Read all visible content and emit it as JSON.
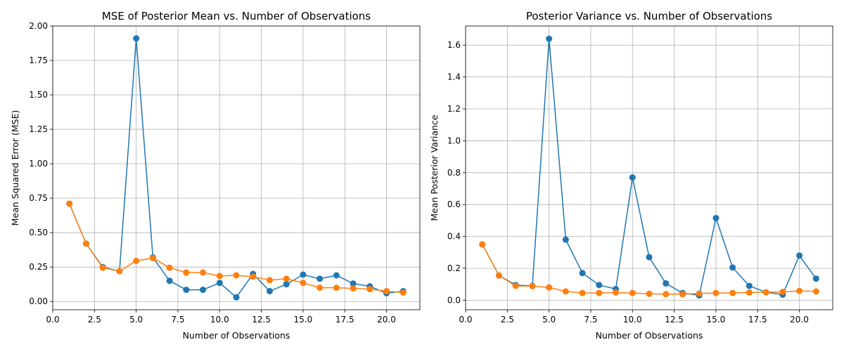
{
  "chart_data": [
    {
      "type": "line",
      "title": "MSE of Posterior Mean vs. Number of Observations",
      "xlabel": "Number of Observations",
      "ylabel": "Mean Squared Error (MSE)",
      "xlim": [
        0.0,
        22.0
      ],
      "ylim": [
        -0.06,
        2.0
      ],
      "xticks": [
        0.0,
        2.5,
        5.0,
        7.5,
        10.0,
        12.5,
        15.0,
        17.5,
        20.0
      ],
      "xtick_labels": [
        "0.0",
        "2.5",
        "5.0",
        "7.5",
        "10.0",
        "12.5",
        "15.0",
        "17.5",
        "20.0"
      ],
      "yticks": [
        0.0,
        0.25,
        0.5,
        0.75,
        1.0,
        1.25,
        1.5,
        1.75,
        2.0
      ],
      "ytick_labels": [
        "0.00",
        "0.25",
        "0.50",
        "0.75",
        "1.00",
        "1.25",
        "1.50",
        "1.75",
        "2.00"
      ],
      "grid": true,
      "x": [
        1,
        2,
        3,
        4,
        5,
        6,
        7,
        8,
        9,
        10,
        11,
        12,
        13,
        14,
        15,
        16,
        17,
        18,
        19,
        20,
        21
      ],
      "series": [
        {
          "color": "#1f77b4",
          "values": [
            0.71,
            0.42,
            0.25,
            0.22,
            1.91,
            0.32,
            0.15,
            0.085,
            0.085,
            0.135,
            0.03,
            0.2,
            0.075,
            0.125,
            0.195,
            0.165,
            0.19,
            0.13,
            0.11,
            0.06,
            0.075
          ]
        },
        {
          "color": "#ff7f0e",
          "values": [
            0.71,
            0.42,
            0.245,
            0.22,
            0.295,
            0.315,
            0.245,
            0.21,
            0.21,
            0.185,
            0.19,
            0.18,
            0.155,
            0.165,
            0.135,
            0.1,
            0.1,
            0.095,
            0.09,
            0.075,
            0.065
          ]
        }
      ]
    },
    {
      "type": "line",
      "title": "Posterior Variance vs. Number of Observations",
      "xlabel": "Number of Observations",
      "ylabel": "Mean Posterior Variance",
      "xlim": [
        0.0,
        22.0
      ],
      "ylim": [
        -0.06,
        1.72
      ],
      "xticks": [
        0.0,
        2.5,
        5.0,
        7.5,
        10.0,
        12.5,
        15.0,
        17.5,
        20.0
      ],
      "xtick_labels": [
        "0.0",
        "2.5",
        "5.0",
        "7.5",
        "10.0",
        "12.5",
        "15.0",
        "17.5",
        "20.0"
      ],
      "yticks": [
        0.0,
        0.2,
        0.4,
        0.6,
        0.8,
        1.0,
        1.2,
        1.4,
        1.6
      ],
      "ytick_labels": [
        "0.0",
        "0.2",
        "0.4",
        "0.6",
        "0.8",
        "1.0",
        "1.2",
        "1.4",
        "1.6"
      ],
      "grid": true,
      "x": [
        1,
        2,
        3,
        4,
        5,
        6,
        7,
        8,
        9,
        10,
        11,
        12,
        13,
        14,
        15,
        16,
        17,
        18,
        19,
        20,
        21
      ],
      "series": [
        {
          "color": "#1f77b4",
          "values": [
            0.35,
            0.155,
            0.095,
            0.09,
            1.64,
            0.38,
            0.17,
            0.095,
            0.07,
            0.77,
            0.27,
            0.105,
            0.045,
            0.03,
            0.515,
            0.205,
            0.09,
            0.05,
            0.035,
            0.28,
            0.135
          ]
        },
        {
          "color": "#ff7f0e",
          "values": [
            0.35,
            0.155,
            0.09,
            0.088,
            0.08,
            0.055,
            0.045,
            0.045,
            0.048,
            0.045,
            0.04,
            0.038,
            0.038,
            0.042,
            0.045,
            0.045,
            0.048,
            0.05,
            0.052,
            0.058,
            0.055
          ]
        }
      ]
    }
  ]
}
